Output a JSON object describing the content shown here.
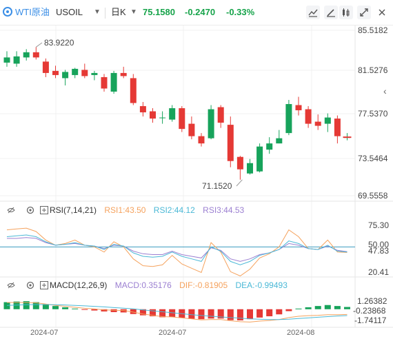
{
  "header": {
    "title": "WTI原油",
    "symbol": "USOIL",
    "timeframe": "日K",
    "price": "75.1580",
    "change": "-0.2470",
    "change_pct": "-0.33%"
  },
  "toolbar": {
    "icons": [
      "line-chart-icon",
      "draw-icon",
      "indicator-icon",
      "fullscreen-icon"
    ]
  },
  "main_chart": {
    "y_labels": [
      "85.5182",
      "81.5276",
      "77.5370",
      "73.5464",
      "69.5558"
    ],
    "high_annotation": "83.9220",
    "low_annotation": "71.1520",
    "colors": {
      "up": "#17a35b",
      "down": "#e53935"
    }
  },
  "rsi_panel": {
    "name": "RSI(7,14,21)",
    "rsi1": "RSI1:43.50",
    "rsi2": "RSI2:44.12",
    "rsi3": "RSI3:44.53",
    "y_labels": [
      "75.30",
      "50.00",
      "47.83",
      "20.41"
    ],
    "colors": {
      "rsi1": "#f5a25d",
      "rsi2": "#4ab8d6",
      "rsi3": "#9b7fd1"
    }
  },
  "macd_panel": {
    "name": "MACD(12,26,9)",
    "macd": "MACD:0.35176",
    "dif": "DIF:-0.81905",
    "dea": "DEA:-0.99493",
    "y_labels": [
      "1.26382",
      "-0.23868",
      "-1.74117"
    ],
    "colors": {
      "macd": "#9b7fd1",
      "dif": "#f5a25d",
      "dea": "#4ab8d6"
    }
  },
  "x_labels": [
    "2024-07",
    "2024-07",
    "2024-08"
  ],
  "chart_data": {
    "type": "candlestick",
    "series": [
      {
        "o": 82.4,
        "h": 83.5,
        "l": 82.0,
        "c": 82.9
      },
      {
        "o": 82.3,
        "h": 83.5,
        "l": 82.0,
        "c": 83.0
      },
      {
        "o": 82.9,
        "h": 83.7,
        "l": 82.6,
        "c": 83.4
      },
      {
        "o": 83.4,
        "h": 83.9,
        "l": 82.7,
        "c": 82.9
      },
      {
        "o": 82.5,
        "h": 82.8,
        "l": 81.0,
        "c": 81.4
      },
      {
        "o": 81.6,
        "h": 82.1,
        "l": 80.9,
        "c": 81.2
      },
      {
        "o": 80.9,
        "h": 81.7,
        "l": 80.2,
        "c": 81.5
      },
      {
        "o": 81.2,
        "h": 81.9,
        "l": 80.9,
        "c": 81.8
      },
      {
        "o": 81.7,
        "h": 82.3,
        "l": 80.9,
        "c": 81.1
      },
      {
        "o": 81.2,
        "h": 81.6,
        "l": 80.7,
        "c": 81.4
      },
      {
        "o": 81.0,
        "h": 81.3,
        "l": 79.6,
        "c": 79.9
      },
      {
        "o": 79.6,
        "h": 81.6,
        "l": 79.4,
        "c": 81.4
      },
      {
        "o": 81.4,
        "h": 82.0,
        "l": 80.9,
        "c": 81.1
      },
      {
        "o": 80.9,
        "h": 81.3,
        "l": 78.3,
        "c": 78.5
      },
      {
        "o": 78.2,
        "h": 78.6,
        "l": 77.2,
        "c": 77.6
      },
      {
        "o": 77.7,
        "h": 78.0,
        "l": 76.6,
        "c": 77.0
      },
      {
        "o": 77.1,
        "h": 77.7,
        "l": 76.5,
        "c": 77.1
      },
      {
        "o": 76.9,
        "h": 78.3,
        "l": 76.7,
        "c": 78.0
      },
      {
        "o": 78.0,
        "h": 78.2,
        "l": 75.7,
        "c": 76.0
      },
      {
        "o": 76.5,
        "h": 77.2,
        "l": 75.0,
        "c": 75.3
      },
      {
        "o": 75.3,
        "h": 75.6,
        "l": 74.3,
        "c": 74.6
      },
      {
        "o": 75.1,
        "h": 78.3,
        "l": 75.0,
        "c": 77.9
      },
      {
        "o": 78.1,
        "h": 78.3,
        "l": 76.1,
        "c": 76.6
      },
      {
        "o": 76.4,
        "h": 77.2,
        "l": 72.3,
        "c": 72.9
      },
      {
        "o": 73.3,
        "h": 73.4,
        "l": 71.1,
        "c": 72.1
      },
      {
        "o": 71.7,
        "h": 73.1,
        "l": 71.6,
        "c": 72.7
      },
      {
        "o": 71.9,
        "h": 74.6,
        "l": 71.8,
        "c": 74.3
      },
      {
        "o": 74.0,
        "h": 75.2,
        "l": 73.6,
        "c": 74.6
      },
      {
        "o": 74.6,
        "h": 75.9,
        "l": 74.6,
        "c": 75.1
      },
      {
        "o": 75.6,
        "h": 78.8,
        "l": 75.4,
        "c": 78.4
      },
      {
        "o": 78.3,
        "h": 79.1,
        "l": 77.3,
        "c": 77.8
      },
      {
        "o": 77.9,
        "h": 78.2,
        "l": 76.1,
        "c": 76.5
      },
      {
        "o": 76.7,
        "h": 77.4,
        "l": 75.9,
        "c": 76.3
      },
      {
        "o": 76.5,
        "h": 77.5,
        "l": 75.7,
        "c": 77.1
      },
      {
        "o": 77.0,
        "h": 77.3,
        "l": 74.6,
        "c": 75.3
      },
      {
        "o": 75.2,
        "h": 75.6,
        "l": 74.9,
        "c": 75.2
      }
    ],
    "rsi": {
      "rsi1": [
        70,
        71,
        72,
        68,
        58,
        52,
        54,
        58,
        52,
        50,
        44,
        56,
        50,
        36,
        28,
        27,
        29,
        40,
        30,
        25,
        20,
        55,
        44,
        21,
        16,
        24,
        37,
        42,
        50,
        70,
        62,
        48,
        47,
        58,
        44,
        43.5
      ],
      "rsi2": [
        62,
        63,
        64,
        62,
        56,
        52,
        53,
        55,
        52,
        51,
        47,
        53,
        51,
        43,
        39,
        38,
        39,
        44,
        39,
        36,
        33,
        50,
        45,
        33,
        29,
        33,
        40,
        43,
        47,
        57,
        54,
        48,
        47,
        52,
        45,
        44.1
      ],
      "rsi3": [
        60,
        60,
        61,
        60,
        55,
        52,
        53,
        54,
        52,
        51,
        48,
        52,
        51,
        45,
        42,
        41,
        41,
        45,
        41,
        39,
        37,
        49,
        46,
        36,
        33,
        36,
        41,
        43,
        47,
        54,
        52,
        48,
        47,
        51,
        46,
        44.5
      ]
    },
    "macd": {
      "hist": [
        1.1,
        1.2,
        1.25,
        1.1,
        0.8,
        0.5,
        0.3,
        0.1,
        -0.1,
        -0.2,
        -0.35,
        -0.45,
        -0.5,
        -0.75,
        -0.95,
        -1.1,
        -1.25,
        -1.2,
        -1.35,
        -1.5,
        -1.55,
        -1.45,
        -1.45,
        -1.7,
        -1.74,
        -1.55,
        -1.3,
        -1.1,
        -0.8,
        -0.3,
        0.1,
        0.3,
        0.5,
        0.65,
        0.5,
        0.35
      ],
      "dif": [
        1.05,
        1.05,
        1.05,
        1.0,
        0.8,
        0.6,
        0.45,
        0.3,
        0.15,
        0.05,
        -0.1,
        -0.15,
        -0.2,
        -0.45,
        -0.75,
        -0.95,
        -1.15,
        -1.2,
        -1.35,
        -1.5,
        -1.65,
        -1.6,
        -1.6,
        -1.8,
        -1.95,
        -2.0,
        -1.85,
        -1.75,
        -1.6,
        -1.3,
        -1.1,
        -1.0,
        -0.95,
        -0.85,
        -0.85,
        -0.82
      ],
      "dea": [
        0.6,
        0.65,
        0.7,
        0.72,
        0.72,
        0.7,
        0.66,
        0.6,
        0.52,
        0.45,
        0.36,
        0.26,
        0.17,
        0.05,
        -0.1,
        -0.25,
        -0.4,
        -0.55,
        -0.7,
        -0.85,
        -0.98,
        -1.1,
        -1.2,
        -1.3,
        -1.4,
        -1.5,
        -1.56,
        -1.6,
        -1.6,
        -1.55,
        -1.45,
        -1.35,
        -1.25,
        -1.15,
        -1.05,
        -0.99
      ]
    }
  }
}
